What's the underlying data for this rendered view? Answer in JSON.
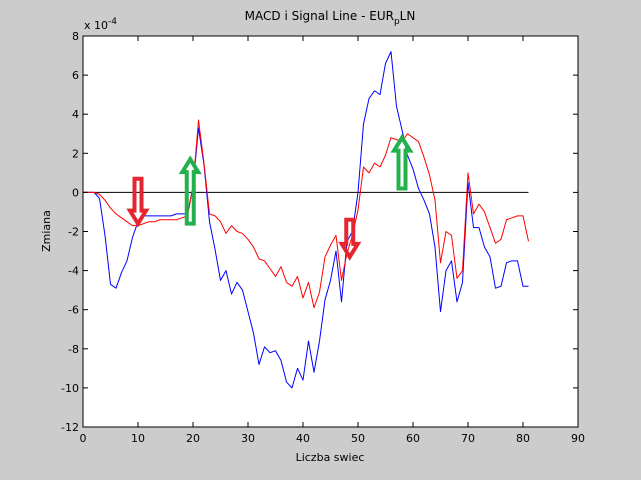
{
  "chart_data": {
    "type": "line",
    "title_main": "MACD i Signal Line - EUR",
    "title_sub": "p",
    "title_tail": "LN",
    "xlabel": "Liczba swiec",
    "ylabel": "Zmiana",
    "y_multiplier": "x 10",
    "y_exponent": "-4",
    "xlim": [
      0,
      90
    ],
    "ylim": [
      -12,
      8
    ],
    "xticks": [
      0,
      10,
      20,
      30,
      40,
      50,
      60,
      70,
      80,
      90
    ],
    "yticks": [
      -12,
      -10,
      -8,
      -6,
      -4,
      -2,
      0,
      2,
      4,
      6,
      8
    ],
    "grid": false,
    "reference_line": {
      "y": 0,
      "x_from": 0,
      "x_to": 81,
      "color": "#000000"
    },
    "series": [
      {
        "color": "#0000ff",
        "x": [
          0,
          1,
          2,
          3,
          4,
          5,
          6,
          7,
          8,
          9,
          10,
          11,
          12,
          13,
          14,
          15,
          16,
          17,
          18,
          19,
          20,
          21,
          22,
          23,
          24,
          25,
          26,
          27,
          28,
          29,
          30,
          31,
          32,
          33,
          34,
          35,
          36,
          37,
          38,
          39,
          40,
          41,
          42,
          43,
          44,
          45,
          46,
          47,
          48,
          49,
          50,
          51,
          52,
          53,
          54,
          55,
          56,
          57,
          58,
          59,
          60,
          61,
          62,
          63,
          64,
          65,
          66,
          67,
          68,
          69,
          70,
          71,
          72,
          73,
          74,
          75,
          76,
          77,
          78,
          79,
          80,
          81
        ],
        "values": [
          0,
          0,
          0,
          -0.3,
          -2.2,
          -4.7,
          -4.9,
          -4.1,
          -3.5,
          -2.3,
          -1.5,
          -1.2,
          -1.2,
          -1.2,
          -1.2,
          -1.2,
          -1.2,
          -1.1,
          -1.1,
          -1.1,
          0.3,
          3.3,
          1.4,
          -1.5,
          -2.9,
          -4.5,
          -4.0,
          -5.2,
          -4.6,
          -5.0,
          -6.1,
          -7.2,
          -8.8,
          -7.9,
          -8.2,
          -8.1,
          -8.6,
          -9.7,
          -10.0,
          -9.0,
          -9.6,
          -7.6,
          -9.2,
          -7.6,
          -5.5,
          -4.5,
          -3.0,
          -5.6,
          -2.5,
          -2.0,
          0.0,
          3.5,
          4.8,
          5.2,
          5.0,
          6.6,
          7.2,
          4.4,
          3.2,
          1.9,
          1.2,
          0.2,
          -0.4,
          -1.1,
          -2.8,
          -6.1,
          -4.0,
          -3.5,
          -5.6,
          -4.6,
          0.5,
          -1.8,
          -1.8,
          -2.8,
          -3.3,
          -4.9,
          -4.8,
          -3.6,
          -3.5,
          -3.5,
          -4.8,
          -4.8
        ]
      },
      {
        "color": "#ff0000",
        "x": [
          0,
          1,
          2,
          3,
          4,
          5,
          6,
          7,
          8,
          9,
          10,
          11,
          12,
          13,
          14,
          15,
          16,
          17,
          18,
          19,
          20,
          21,
          22,
          23,
          24,
          25,
          26,
          27,
          28,
          29,
          30,
          31,
          32,
          33,
          34,
          35,
          36,
          37,
          38,
          39,
          40,
          41,
          42,
          43,
          44,
          45,
          46,
          47,
          48,
          49,
          50,
          51,
          52,
          53,
          54,
          55,
          56,
          57,
          58,
          59,
          60,
          61,
          62,
          63,
          64,
          65,
          66,
          67,
          68,
          69,
          70,
          71,
          72,
          73,
          74,
          75,
          76,
          77,
          78,
          79,
          80,
          81
        ],
        "values": [
          0,
          0,
          0,
          -0.1,
          -0.4,
          -0.8,
          -1.1,
          -1.3,
          -1.5,
          -1.7,
          -1.7,
          -1.6,
          -1.5,
          -1.5,
          -1.4,
          -1.4,
          -1.4,
          -1.4,
          -1.3,
          -1.2,
          0.3,
          3.7,
          1.5,
          -1.1,
          -1.2,
          -1.5,
          -2.1,
          -1.7,
          -2.0,
          -2.1,
          -2.4,
          -2.8,
          -3.4,
          -3.5,
          -3.9,
          -4.3,
          -3.8,
          -4.6,
          -4.8,
          -4.3,
          -5.4,
          -4.6,
          -5.9,
          -5.1,
          -3.3,
          -2.7,
          -2.2,
          -4.5,
          -3.1,
          -2.2,
          -0.9,
          1.3,
          1.0,
          1.5,
          1.3,
          1.9,
          2.8,
          2.7,
          2.6,
          3.0,
          2.8,
          2.6,
          1.8,
          0.9,
          -0.4,
          -3.6,
          -2.0,
          -2.2,
          -4.4,
          -4.0,
          1.0,
          -1.1,
          -0.6,
          -1.0,
          -1.8,
          -2.6,
          -2.4,
          -1.4,
          -1.3,
          -1.2,
          -1.2,
          -2.5
        ]
      }
    ],
    "annotations": [
      {
        "kind": "arrow-down",
        "color": "#e52630",
        "x": 10,
        "y_from": 0.7,
        "y_to": -1.6
      },
      {
        "kind": "arrow-up",
        "color": "#22b14c",
        "x": 19.5,
        "y_from": -1.6,
        "y_to": 1.7
      },
      {
        "kind": "arrow-down",
        "color": "#e52630",
        "x": 48.5,
        "y_from": -1.4,
        "y_to": -3.3
      },
      {
        "kind": "arrow-up",
        "color": "#22b14c",
        "x": 58,
        "y_from": 0.2,
        "y_to": 2.8
      }
    ],
    "colors": {
      "figure_bg": "#cccccc",
      "axes_bg": "#ffffff",
      "axes_edge": "#000000"
    }
  }
}
